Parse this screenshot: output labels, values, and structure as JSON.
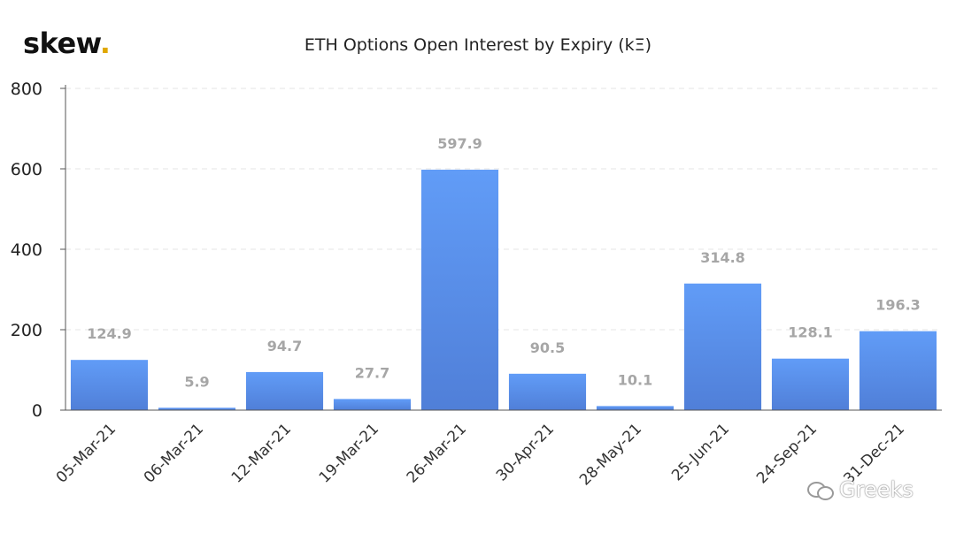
{
  "logo": {
    "text": "skew",
    "dot": "."
  },
  "watermark": {
    "text": "Greeks",
    "icon": "wechat-icon"
  },
  "colors": {
    "bar": "#5b8fe8",
    "bar_top": "#619cf7",
    "bar_bottom": "#507fd8",
    "label": "#a6a6a6",
    "grid": "#e6e6e6",
    "axis": "#555555"
  },
  "chart_data": {
    "type": "bar",
    "title": "ETH Options Open Interest by Expiry (kΞ)",
    "xlabel": "",
    "ylabel": "",
    "categories": [
      "05-Mar-21",
      "06-Mar-21",
      "12-Mar-21",
      "19-Mar-21",
      "26-Mar-21",
      "30-Apr-21",
      "28-May-21",
      "25-Jun-21",
      "24-Sep-21",
      "31-Dec-21"
    ],
    "values": [
      124.9,
      5.9,
      94.7,
      27.7,
      597.9,
      90.5,
      10.1,
      314.8,
      128.1,
      196.3
    ],
    "data_labels": [
      "124.9",
      "5.9",
      "94.7",
      "27.7",
      "597.9",
      "90.5",
      "10.1",
      "314.8",
      "128.1",
      "196.3"
    ],
    "ylim": [
      0,
      800
    ],
    "yticks": [
      0,
      200,
      400,
      600,
      800
    ],
    "grid": true,
    "legend": "none"
  }
}
